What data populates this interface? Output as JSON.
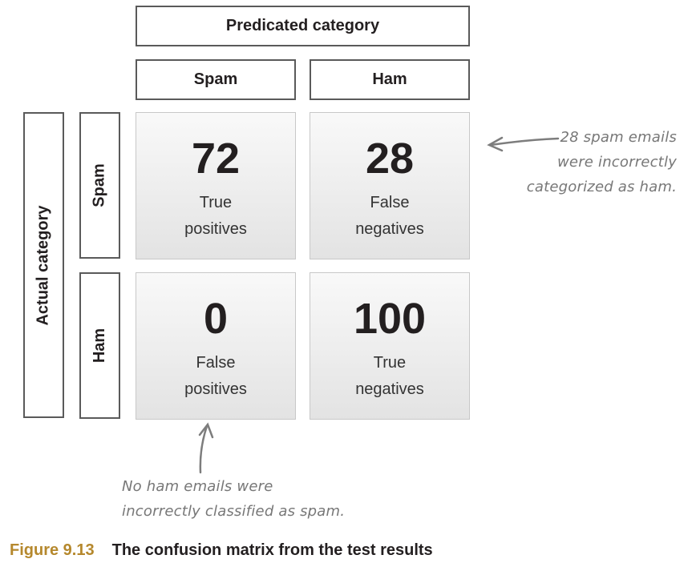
{
  "header": {
    "predicted_category": "Predicated category",
    "actual_category": "Actual category"
  },
  "columns": [
    {
      "label": "Spam"
    },
    {
      "label": "Ham"
    }
  ],
  "rows": [
    {
      "label": "Spam"
    },
    {
      "label": "Ham"
    }
  ],
  "matrix": {
    "tp": {
      "value": "72",
      "line1": "True",
      "line2": "positives"
    },
    "fn": {
      "value": "28",
      "line1": "False",
      "line2": "negatives"
    },
    "fp": {
      "value": "0",
      "line1": "False",
      "line2": "positives"
    },
    "tn": {
      "value": "100",
      "line1": "True",
      "line2": "negatives"
    }
  },
  "annotations": {
    "right": {
      "line1": "28 spam emails",
      "line2": "were incorrectly",
      "line3": "categorized as ham."
    },
    "bottom": {
      "line1": "No ham emails were",
      "line2": "incorrectly classified as spam."
    }
  },
  "caption": {
    "figure": "Figure 9.13",
    "text": "The confusion matrix from the test results"
  }
}
